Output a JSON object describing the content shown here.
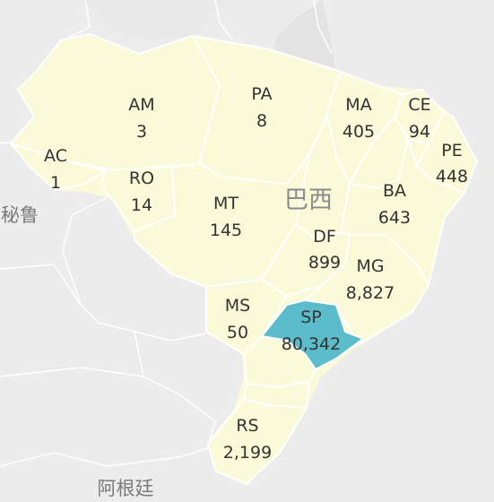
{
  "map": {
    "countries": {
      "brazil": "巴西",
      "peru": "秘鲁",
      "argentina": "阿根廷"
    },
    "highlight_color": "#5bbccc",
    "base_color": "#fafad8",
    "states": [
      {
        "code": "AM",
        "value": "3"
      },
      {
        "code": "PA",
        "value": "8"
      },
      {
        "code": "MA",
        "value": "405"
      },
      {
        "code": "CE",
        "value": "94"
      },
      {
        "code": "PE",
        "value": "448"
      },
      {
        "code": "AC",
        "value": "1"
      },
      {
        "code": "RO",
        "value": "14"
      },
      {
        "code": "MT",
        "value": "145"
      },
      {
        "code": "BA",
        "value": "643"
      },
      {
        "code": "DF",
        "value": "899"
      },
      {
        "code": "MG",
        "value": "8,827"
      },
      {
        "code": "MS",
        "value": "50"
      },
      {
        "code": "SP",
        "value": "80,342",
        "highlighted": true
      },
      {
        "code": "RS",
        "value": "2,199"
      }
    ]
  }
}
